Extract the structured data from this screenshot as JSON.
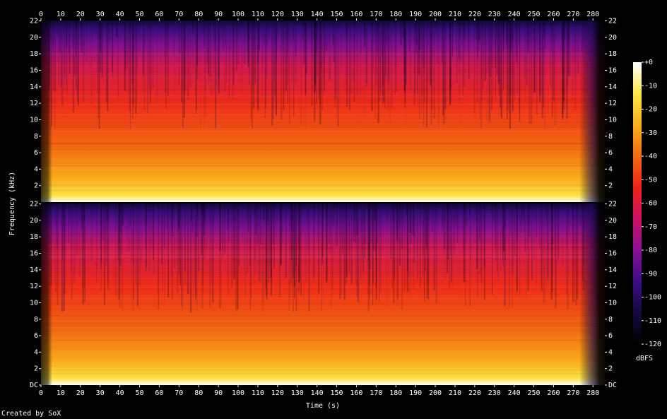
{
  "chart_data": {
    "type": "spectrogram",
    "x_label": "Time (s)",
    "y_label": "Frequency (kHz)",
    "xlim": [
      0,
      286
    ],
    "xticks": [
      0,
      10,
      20,
      30,
      40,
      50,
      60,
      70,
      80,
      90,
      100,
      110,
      120,
      130,
      140,
      150,
      160,
      170,
      180,
      190,
      200,
      210,
      220,
      230,
      240,
      250,
      260,
      270,
      280
    ],
    "panels": [
      {
        "ylim": [
          0,
          22.05
        ],
        "yticks": [
          2,
          4,
          6,
          8,
          10,
          12,
          14,
          16,
          18,
          20,
          22
        ]
      },
      {
        "ylim": [
          0,
          22.05
        ],
        "yticks": [
          {
            "value": 0,
            "label": "DC"
          },
          2,
          4,
          6,
          8,
          10,
          12,
          14,
          16,
          18,
          20,
          22
        ]
      }
    ],
    "colorbar": {
      "label": "dBFS",
      "zlim": [
        -120,
        0
      ],
      "zticks": [
        {
          "value": 0,
          "label": "+0"
        },
        -10,
        -20,
        -30,
        -40,
        -50,
        -60,
        -70,
        -80,
        -90,
        -100,
        -110,
        -120
      ],
      "colormap": [
        "#000000",
        "#14083e",
        "#3c0c86",
        "#8a109a",
        "#cc1262",
        "#ee2218",
        "#f46a10",
        "#f8b01c",
        "#fce848",
        "#ffffff"
      ]
    }
  },
  "footer": "Created by SoX"
}
